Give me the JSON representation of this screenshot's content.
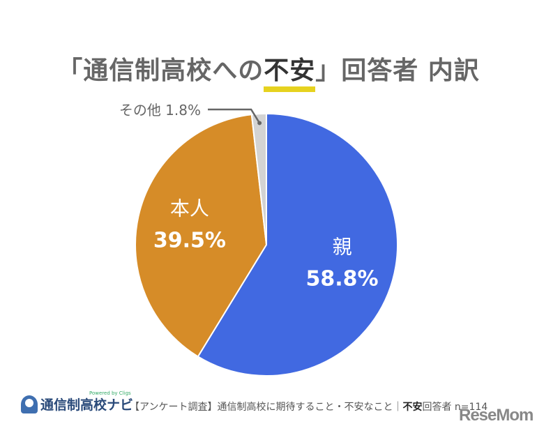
{
  "chart_data": {
    "type": "pie",
    "title_parts": [
      "「通信制高校への",
      "不安",
      "」回答者 内訳"
    ],
    "start": "12 o'clock, clockwise",
    "slices": [
      {
        "label": "親",
        "value": 58.8,
        "value_label": "58.8%",
        "color": "#4169e1"
      },
      {
        "label": "本人",
        "value": 39.5,
        "value_label": "39.5%",
        "color": "#d68c28"
      },
      {
        "label": "その他",
        "value": 1.8,
        "value_label": "その他 1.8%",
        "color": "#d3d3d3"
      }
    ],
    "highlight_color": "#e6d21f"
  },
  "footer": {
    "logo_name": "通信制高校ナビ",
    "powered": "Powered by Cligs",
    "survey": "【アンケート調査】通信制高校に期待すること・不安なこと｜",
    "bold": "不安",
    "rest": "回答者 n=114"
  },
  "watermark": "ReseMom"
}
